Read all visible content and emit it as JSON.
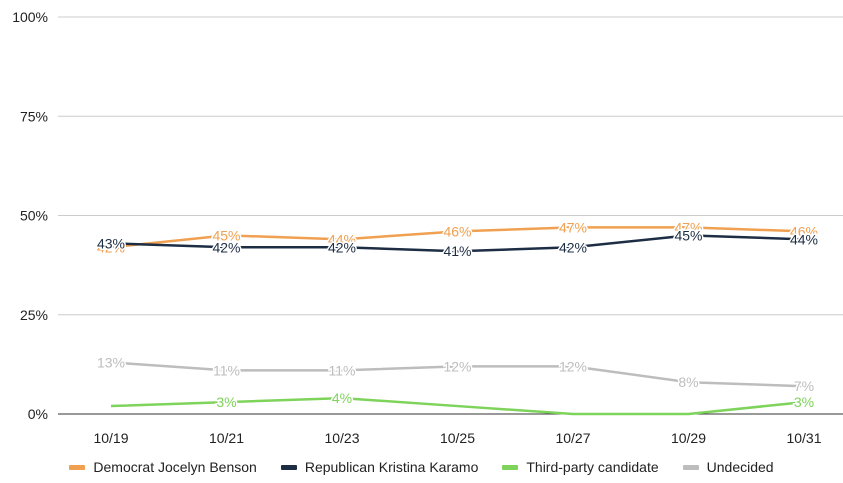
{
  "chart_data": {
    "type": "line",
    "title": "",
    "xlabel": "",
    "ylabel": "",
    "x": [
      "10/19",
      "10/21",
      "10/23",
      "10/25",
      "10/27",
      "10/29",
      "10/31"
    ],
    "ylim": [
      0,
      100
    ],
    "yticks": [
      0,
      25,
      50,
      75,
      100
    ],
    "ytick_labels": [
      "0%",
      "25%",
      "50%",
      "75%",
      "100%"
    ],
    "grid": true,
    "legend_position": "bottom",
    "series": [
      {
        "name": "Democrat Jocelyn Benson",
        "color": "#F0A050",
        "values": [
          42,
          45,
          44,
          46,
          47,
          47,
          46
        ],
        "labels": [
          "42%",
          "45%",
          "44%",
          "46%",
          "47%",
          "47%",
          "46%"
        ]
      },
      {
        "name": "Republican Kristina Karamo",
        "color": "#1D2D44",
        "values": [
          43,
          42,
          42,
          41,
          42,
          45,
          44
        ],
        "labels": [
          "43%",
          "42%",
          "42%",
          "41%",
          "42%",
          "45%",
          "44%"
        ]
      },
      {
        "name": "Third-party candidate",
        "color": "#7ED35A",
        "values": [
          2,
          3,
          4,
          2,
          0,
          0,
          3
        ],
        "labels": [
          "",
          "3%",
          "4%",
          "",
          "",
          "",
          "3%"
        ]
      },
      {
        "name": "Undecided",
        "color": "#BDBDBD",
        "values": [
          13,
          11,
          11,
          12,
          12,
          8,
          7
        ],
        "labels": [
          "13%",
          "11%",
          "11%",
          "12%",
          "12%",
          "8%",
          "7%"
        ]
      }
    ]
  }
}
